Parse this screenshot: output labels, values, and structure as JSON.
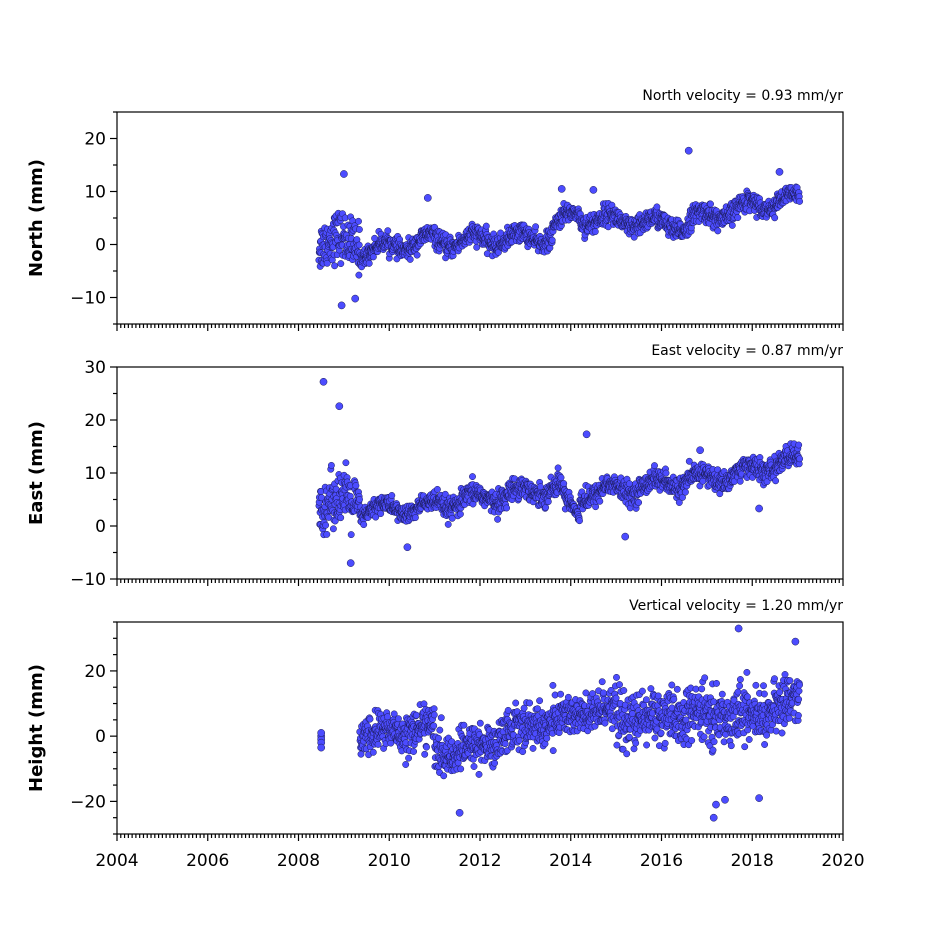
{
  "chart_data": [
    {
      "type": "scatter",
      "title": "North velocity = 0.93 mm/yr",
      "ylabel": "North (mm)",
      "xlim": [
        2004,
        2020
      ],
      "ylim": [
        -15,
        25
      ],
      "yticks": [
        -10,
        0,
        10,
        20
      ],
      "xticks": [
        2004,
        2006,
        2008,
        2010,
        2012,
        2014,
        2016,
        2018,
        2020
      ],
      "xtick_labels_shown": false,
      "marker_color": "#4c4cff",
      "series": [
        {
          "segments": [
            {
              "x0": 2008.45,
              "x1": 2009.35,
              "mean_start": 0.5,
              "mean_end": 0.5,
              "noise": 4.2
            },
            {
              "x0": 2009.35,
              "x1": 2011.0,
              "mean_start": -1.5,
              "mean_end": 1.0,
              "noise": 1.5
            },
            {
              "x0": 2011.0,
              "x1": 2013.6,
              "mean_start": 0.5,
              "mean_end": 1.5,
              "noise": 1.6
            },
            {
              "x0": 2013.6,
              "x1": 2014.2,
              "mean_start": 3.0,
              "mean_end": 6.5,
              "noise": 1.5
            },
            {
              "x0": 2014.2,
              "x1": 2016.6,
              "mean_start": 5.0,
              "mean_end": 3.5,
              "noise": 1.7
            },
            {
              "x0": 2016.6,
              "x1": 2017.9,
              "mean_start": 4.5,
              "mean_end": 7.0,
              "noise": 1.7
            },
            {
              "x0": 2017.9,
              "x1": 2019.05,
              "mean_start": 7.5,
              "mean_end": 8.5,
              "noise": 1.4
            }
          ],
          "outliers": [
            [
              2009.0,
              13.3
            ],
            [
              2010.85,
              8.8
            ],
            [
              2016.6,
              17.7
            ],
            [
              2018.6,
              13.7
            ],
            [
              2008.95,
              -11.5
            ],
            [
              2009.25,
              -10.2
            ],
            [
              2013.8,
              10.5
            ],
            [
              2014.5,
              10.3
            ]
          ]
        }
      ]
    },
    {
      "type": "scatter",
      "title": "East velocity = 0.87 mm/yr",
      "ylabel": "East (mm)",
      "xlim": [
        2004,
        2020
      ],
      "ylim": [
        -10,
        30
      ],
      "yticks": [
        -10,
        0,
        10,
        20,
        30
      ],
      "xticks": [
        2004,
        2006,
        2008,
        2010,
        2012,
        2014,
        2016,
        2018,
        2020
      ],
      "xtick_labels_shown": false,
      "marker_color": "#4c4cff",
      "series": [
        {
          "segments": [
            {
              "x0": 2008.45,
              "x1": 2009.35,
              "mean_start": 4.0,
              "mean_end": 5.0,
              "noise": 4.5
            },
            {
              "x0": 2009.35,
              "x1": 2011.0,
              "mean_start": 3.0,
              "mean_end": 3.5,
              "noise": 1.5
            },
            {
              "x0": 2011.0,
              "x1": 2013.8,
              "mean_start": 4.0,
              "mean_end": 7.5,
              "noise": 1.8
            },
            {
              "x0": 2013.8,
              "x1": 2014.2,
              "mean_start": 5.5,
              "mean_end": 2.0,
              "noise": 1.5
            },
            {
              "x0": 2014.2,
              "x1": 2017.9,
              "mean_start": 6.0,
              "mean_end": 10.0,
              "noise": 1.8
            },
            {
              "x0": 2017.9,
              "x1": 2019.05,
              "mean_start": 10.5,
              "mean_end": 12.5,
              "noise": 1.8
            }
          ],
          "outliers": [
            [
              2008.55,
              27.2
            ],
            [
              2008.9,
              22.6
            ],
            [
              2014.35,
              17.3
            ],
            [
              2015.2,
              -2.0
            ],
            [
              2010.4,
              -4.0
            ],
            [
              2009.15,
              -7.0
            ],
            [
              2018.15,
              3.3
            ],
            [
              2016.85,
              14.3
            ]
          ]
        }
      ]
    },
    {
      "type": "scatter",
      "title": "Vertical velocity = 1.20 mm/yr",
      "ylabel": "Height (mm)",
      "xlim": [
        2004,
        2020
      ],
      "ylim": [
        -30,
        35
      ],
      "yticks": [
        -20,
        0,
        20
      ],
      "xticks": [
        2004,
        2006,
        2008,
        2010,
        2012,
        2014,
        2016,
        2018,
        2020
      ],
      "xtick_labels_shown": true,
      "marker_color": "#4c4cff",
      "series": [
        {
          "segments": [
            {
              "x0": 2009.35,
              "x1": 2011.0,
              "mean_start": 0.0,
              "mean_end": 3.0,
              "noise": 5.5
            },
            {
              "x0": 2011.0,
              "x1": 2012.4,
              "mean_start": -6.0,
              "mean_end": -2.0,
              "noise": 5.5
            },
            {
              "x0": 2012.4,
              "x1": 2015.0,
              "mean_start": 1.0,
              "mean_end": 9.0,
              "noise": 6.0
            },
            {
              "x0": 2015.0,
              "x1": 2017.9,
              "mean_start": 5.0,
              "mean_end": 7.0,
              "noise": 7.5
            },
            {
              "x0": 2017.9,
              "x1": 2019.05,
              "mean_start": 5.0,
              "mean_end": 12.0,
              "noise": 6.5
            }
          ],
          "outliers": [
            [
              2008.5,
              0.0
            ],
            [
              2008.5,
              -1.0
            ],
            [
              2008.5,
              -2.0
            ],
            [
              2008.5,
              -3.5
            ],
            [
              2008.5,
              1.0
            ],
            [
              2017.7,
              33.0
            ],
            [
              2017.15,
              -25.0
            ],
            [
              2011.55,
              -23.5
            ],
            [
              2018.15,
              -19.0
            ],
            [
              2017.2,
              -21.0
            ],
            [
              2018.95,
              29.0
            ],
            [
              2017.4,
              -19.5
            ]
          ]
        }
      ]
    }
  ]
}
